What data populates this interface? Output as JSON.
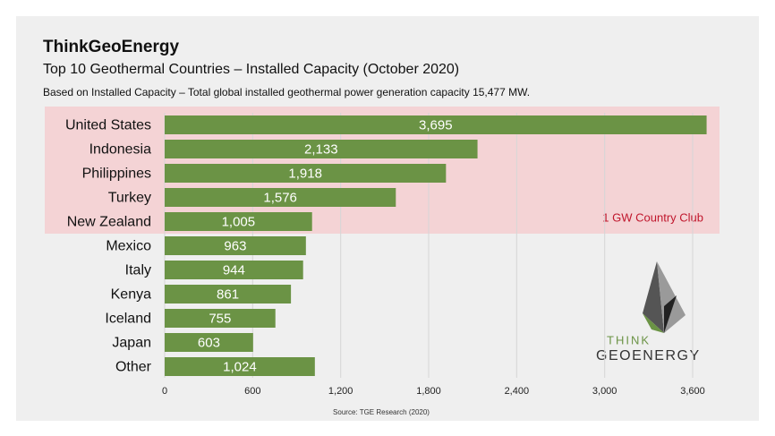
{
  "chart_data": {
    "type": "bar",
    "orientation": "horizontal",
    "title": "ThinkGeoEnergy",
    "subtitle": "Top 10 Geothermal Countries – Installed Capacity (October 2020)",
    "description": "Based on Installed Capacity – Total global installed geothermal power generation capacity 15,477 MW.",
    "source": "Source: TGE Research (2020)",
    "annotation": "1 GW Country Club",
    "categories": [
      "United States",
      "Indonesia",
      "Philippines",
      "Turkey",
      "New Zealand",
      "Mexico",
      "Italy",
      "Kenya",
      "Iceland",
      "Japan",
      "Other"
    ],
    "values": [
      3695,
      2133,
      1918,
      1576,
      1005,
      963,
      944,
      861,
      755,
      603,
      1024
    ],
    "value_labels": [
      "3,695",
      "2,133",
      "1,918",
      "1,576",
      "1,005",
      "963",
      "944",
      "861",
      "755",
      "603",
      "1,024"
    ],
    "color": "#6b9345",
    "xlim": [
      0,
      3800
    ],
    "xticks": [
      0,
      600,
      {
        "value": 1200,
        "label": "1,200"
      },
      {
        "value": 1800,
        "label": "1,800"
      },
      {
        "value": 2400,
        "label": "2,400"
      },
      {
        "value": 3000,
        "label": "3,000"
      },
      {
        "value": 3600,
        "label": "3,600"
      }
    ],
    "grid": true
  },
  "logo": [
    "THINK",
    "GEOENERGY"
  ]
}
